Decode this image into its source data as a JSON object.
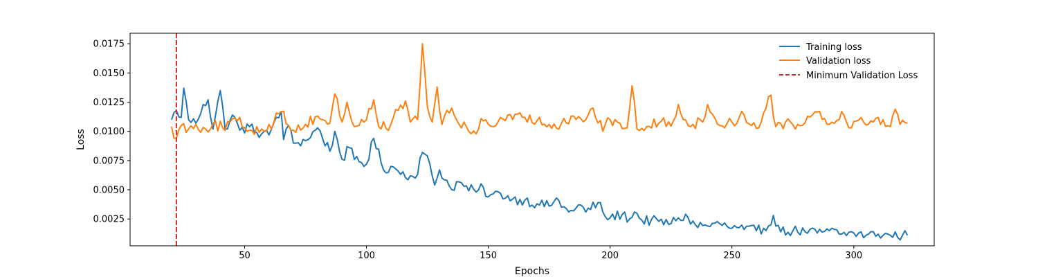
{
  "chart_data": {
    "type": "line",
    "title": "",
    "xlabel": "Epochs",
    "ylabel": "Loss",
    "xlim": [
      3,
      333
    ],
    "ylim": [
      0.0002,
      0.0184
    ],
    "x_ticks": [
      50,
      100,
      150,
      200,
      250,
      300
    ],
    "x_tick_labels": [
      "50",
      "100",
      "150",
      "200",
      "250",
      "300"
    ],
    "y_ticks": [
      0.0025,
      0.005,
      0.0075,
      0.01,
      0.0125,
      0.015,
      0.0175
    ],
    "y_tick_labels": [
      "0.0025",
      "0.0050",
      "0.0075",
      "0.0100",
      "0.0125",
      "0.0150",
      "0.0175"
    ],
    "grid": false,
    "legend_position": "top-right",
    "x_start": 20,
    "x_end": 322,
    "series": [
      {
        "name": "Training loss",
        "color": "#1f77b4",
        "anchors": [
          [
            20,
            0.011
          ],
          [
            22,
            0.0118
          ],
          [
            24,
            0.0112
          ],
          [
            25,
            0.0137
          ],
          [
            27,
            0.011
          ],
          [
            30,
            0.0107
          ],
          [
            33,
            0.0123
          ],
          [
            35,
            0.0127
          ],
          [
            37,
            0.0102
          ],
          [
            40,
            0.0135
          ],
          [
            42,
            0.0102
          ],
          [
            45,
            0.0114
          ],
          [
            48,
            0.0101
          ],
          [
            52,
            0.0104
          ],
          [
            55,
            0.0099
          ],
          [
            60,
            0.0097
          ],
          [
            63,
            0.0112
          ],
          [
            65,
            0.0117
          ],
          [
            66,
            0.0093
          ],
          [
            68,
            0.0105
          ],
          [
            70,
            0.009
          ],
          [
            75,
            0.0092
          ],
          [
            80,
            0.0103
          ],
          [
            85,
            0.0083
          ],
          [
            87,
            0.01
          ],
          [
            90,
            0.0076
          ],
          [
            93,
            0.0086
          ],
          [
            95,
            0.0076
          ],
          [
            100,
            0.0072
          ],
          [
            103,
            0.0094
          ],
          [
            107,
            0.0067
          ],
          [
            110,
            0.007
          ],
          [
            113,
            0.0066
          ],
          [
            118,
            0.0062
          ],
          [
            120,
            0.006
          ],
          [
            123,
            0.0082
          ],
          [
            126,
            0.0072
          ],
          [
            128,
            0.0054
          ],
          [
            130,
            0.0067
          ],
          [
            135,
            0.005
          ],
          [
            137,
            0.0057
          ],
          [
            140,
            0.0053
          ],
          [
            145,
            0.0048
          ],
          [
            148,
            0.0052
          ],
          [
            150,
            0.0044
          ],
          [
            155,
            0.0047
          ],
          [
            160,
            0.0042
          ],
          [
            165,
            0.0041
          ],
          [
            170,
            0.0038
          ],
          [
            175,
            0.0036
          ],
          [
            178,
            0.0043
          ],
          [
            180,
            0.0035
          ],
          [
            185,
            0.0032
          ],
          [
            188,
            0.0037
          ],
          [
            190,
            0.0031
          ],
          [
            195,
            0.0039
          ],
          [
            198,
            0.0027
          ],
          [
            200,
            0.0026
          ],
          [
            205,
            0.0029
          ],
          [
            208,
            0.0025
          ],
          [
            210,
            0.0031
          ],
          [
            213,
            0.0024
          ],
          [
            220,
            0.0023
          ],
          [
            225,
            0.0021
          ],
          [
            228,
            0.0026
          ],
          [
            232,
            0.0026
          ],
          [
            235,
            0.002
          ],
          [
            240,
            0.0019
          ],
          [
            245,
            0.0021
          ],
          [
            250,
            0.0017
          ],
          [
            255,
            0.0016
          ],
          [
            260,
            0.0015
          ],
          [
            265,
            0.0019
          ],
          [
            267,
            0.0028
          ],
          [
            270,
            0.0014
          ],
          [
            275,
            0.0015
          ],
          [
            280,
            0.0014
          ],
          [
            285,
            0.0013
          ],
          [
            290,
            0.0015
          ],
          [
            295,
            0.0012
          ],
          [
            300,
            0.0013
          ],
          [
            305,
            0.0011
          ],
          [
            310,
            0.0012
          ],
          [
            315,
            0.0011
          ],
          [
            320,
            0.0011
          ],
          [
            322,
            0.0011
          ]
        ],
        "noise": 0.00045
      },
      {
        "name": "Validation loss",
        "color": "#ff7f0e",
        "anchors": [
          [
            20,
            0.0104
          ],
          [
            22,
            0.0094
          ],
          [
            24,
            0.0105
          ],
          [
            27,
            0.0102
          ],
          [
            30,
            0.0106
          ],
          [
            34,
            0.0102
          ],
          [
            37,
            0.0106
          ],
          [
            41,
            0.0103
          ],
          [
            47,
            0.0109
          ],
          [
            52,
            0.0101
          ],
          [
            57,
            0.0102
          ],
          [
            62,
            0.0108
          ],
          [
            65,
            0.0117
          ],
          [
            70,
            0.0101
          ],
          [
            75,
            0.0106
          ],
          [
            80,
            0.0113
          ],
          [
            85,
            0.0107
          ],
          [
            87,
            0.0132
          ],
          [
            90,
            0.0108
          ],
          [
            92,
            0.0125
          ],
          [
            95,
            0.0104
          ],
          [
            100,
            0.011
          ],
          [
            103,
            0.0127
          ],
          [
            105,
            0.0104
          ],
          [
            110,
            0.0106
          ],
          [
            113,
            0.0118
          ],
          [
            116,
            0.0126
          ],
          [
            118,
            0.0108
          ],
          [
            121,
            0.011
          ],
          [
            123,
            0.0175
          ],
          [
            125,
            0.0121
          ],
          [
            127,
            0.0108
          ],
          [
            129,
            0.0138
          ],
          [
            131,
            0.0106
          ],
          [
            135,
            0.012
          ],
          [
            138,
            0.0106
          ],
          [
            141,
            0.0104
          ],
          [
            143,
            0.0098
          ],
          [
            148,
            0.0109
          ],
          [
            152,
            0.0104
          ],
          [
            155,
            0.0112
          ],
          [
            160,
            0.011
          ],
          [
            165,
            0.0112
          ],
          [
            170,
            0.0109
          ],
          [
            175,
            0.0106
          ],
          [
            180,
            0.0107
          ],
          [
            185,
            0.0113
          ],
          [
            190,
            0.011
          ],
          [
            193,
            0.012
          ],
          [
            197,
            0.01
          ],
          [
            200,
            0.011
          ],
          [
            204,
            0.0107
          ],
          [
            207,
            0.0103
          ],
          [
            209,
            0.0139
          ],
          [
            211,
            0.0102
          ],
          [
            215,
            0.0104
          ],
          [
            220,
            0.0107
          ],
          [
            226,
            0.0109
          ],
          [
            228,
            0.0123
          ],
          [
            232,
            0.0105
          ],
          [
            238,
            0.0108
          ],
          [
            240,
            0.0123
          ],
          [
            245,
            0.0105
          ],
          [
            250,
            0.0108
          ],
          [
            255,
            0.0114
          ],
          [
            258,
            0.0105
          ],
          [
            262,
            0.0108
          ],
          [
            264,
            0.012
          ],
          [
            266,
            0.0131
          ],
          [
            268,
            0.0104
          ],
          [
            272,
            0.0108
          ],
          [
            277,
            0.0106
          ],
          [
            283,
            0.0114
          ],
          [
            286,
            0.0117
          ],
          [
            290,
            0.0106
          ],
          [
            295,
            0.0117
          ],
          [
            298,
            0.0103
          ],
          [
            303,
            0.0112
          ],
          [
            308,
            0.0108
          ],
          [
            312,
            0.011
          ],
          [
            315,
            0.0104
          ],
          [
            317,
            0.0119
          ],
          [
            319,
            0.0106
          ],
          [
            322,
            0.0107
          ]
        ],
        "noise": 0.0005
      }
    ],
    "min_val_loss_epoch": 22,
    "min_val_loss_label": "Minimum Validation Loss",
    "min_val_loss_color": "#d62728"
  }
}
